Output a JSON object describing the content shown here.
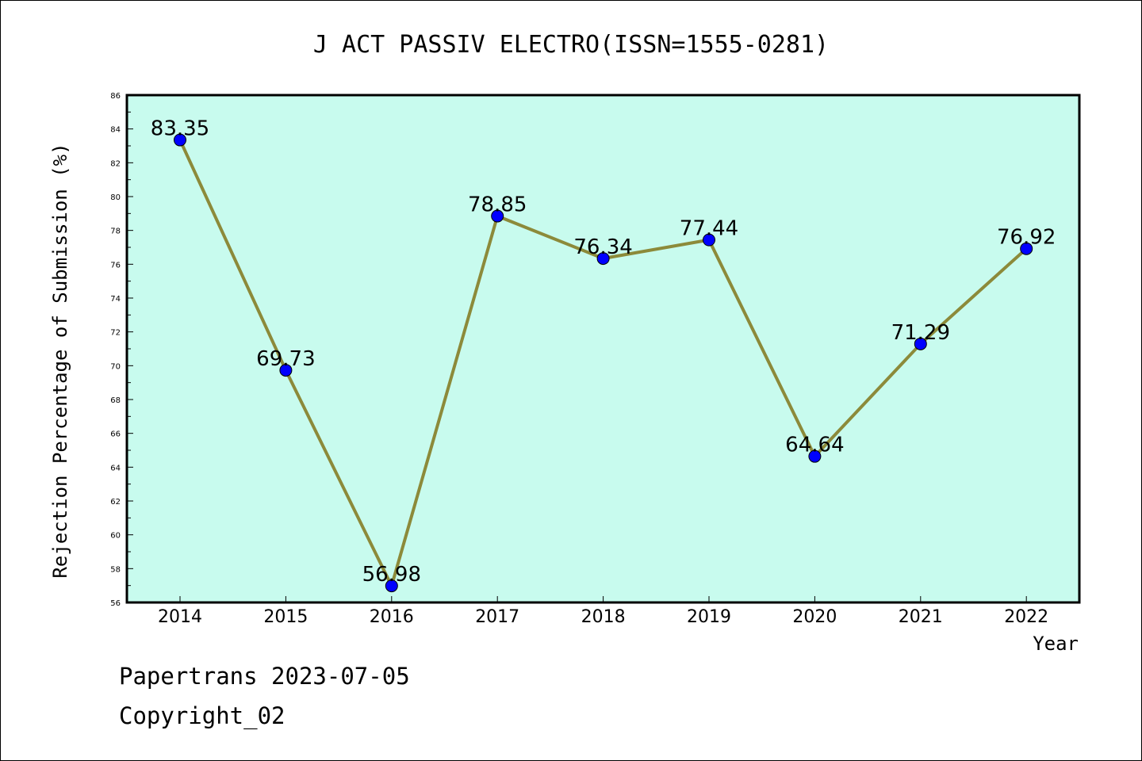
{
  "chart_data": {
    "type": "line",
    "title": "J ACT PASSIV ELECTRO(ISSN=1555-0281)",
    "xlabel": "Year",
    "ylabel": "Rejection Percentage of Submission (%)",
    "categories": [
      "2014",
      "2015",
      "2016",
      "2017",
      "2018",
      "2019",
      "2020",
      "2021",
      "2022"
    ],
    "values": [
      83.35,
      69.73,
      56.98,
      78.85,
      76.34,
      77.44,
      64.64,
      71.29,
      76.92
    ],
    "data_labels": [
      "83.35",
      "69.73",
      "56.98",
      "78.85",
      "76.34",
      "77.44",
      "64.64",
      "71.29",
      "76.92"
    ],
    "ylim": [
      56,
      86
    ],
    "yticks": [
      56,
      58,
      60,
      62,
      64,
      66,
      68,
      70,
      72,
      74,
      76,
      78,
      80,
      82,
      84,
      86
    ],
    "grid": false,
    "legend": "none",
    "colors": {
      "plot_background": "#c8fbee",
      "line": "#8c8a3a",
      "marker": "#0000ff"
    }
  },
  "footer": {
    "line1": "Papertrans 2023-07-05",
    "line2": "Copyright_02"
  }
}
